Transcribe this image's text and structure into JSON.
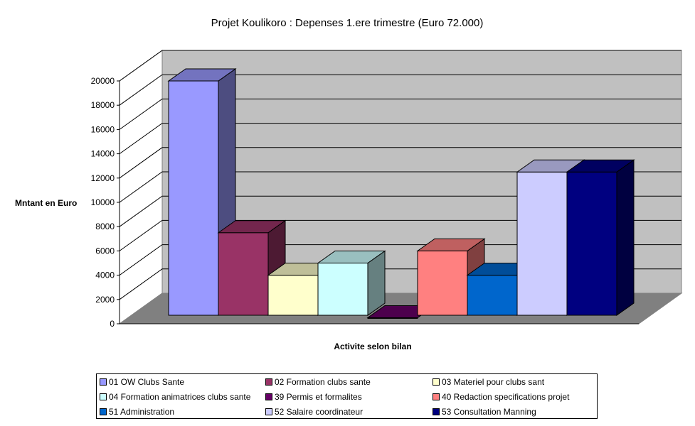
{
  "chart_data": {
    "type": "bar",
    "title": "Projet Koulikoro : Depenses 1.ere trimestre (Euro 72.000)",
    "xlabel": "Activite selon bilan",
    "ylabel": "Mntant en Euro",
    "ylim": [
      0,
      20000
    ],
    "yticks": [
      0,
      2000,
      4000,
      6000,
      8000,
      10000,
      12000,
      14000,
      16000,
      18000,
      20000
    ],
    "grid": true,
    "legend_position": "bottom",
    "series": [
      {
        "name": "01 OW Clubs Sante",
        "value": 20000,
        "color": "#9999ff"
      },
      {
        "name": "02 Formation clubs sante",
        "value": 7500,
        "color": "#993366"
      },
      {
        "name": "03 Materiel pour clubs sant",
        "value": 4000,
        "color": "#ffffcc"
      },
      {
        "name": "04 Formation animatrices clubs sante",
        "value": 5000,
        "color": "#ccffff"
      },
      {
        "name": "39 Permis et formalites",
        "value": 500,
        "color": "#660066"
      },
      {
        "name": "40 Redaction specifications projet",
        "value": 6000,
        "color": "#ff8080"
      },
      {
        "name": "51 Administration",
        "value": 4000,
        "color": "#0066cc"
      },
      {
        "name": "52 Salaire coordinateur",
        "value": 12500,
        "color": "#ccccff"
      },
      {
        "name": "53 Consultation Manning",
        "value": 12500,
        "color": "#000080"
      }
    ]
  }
}
